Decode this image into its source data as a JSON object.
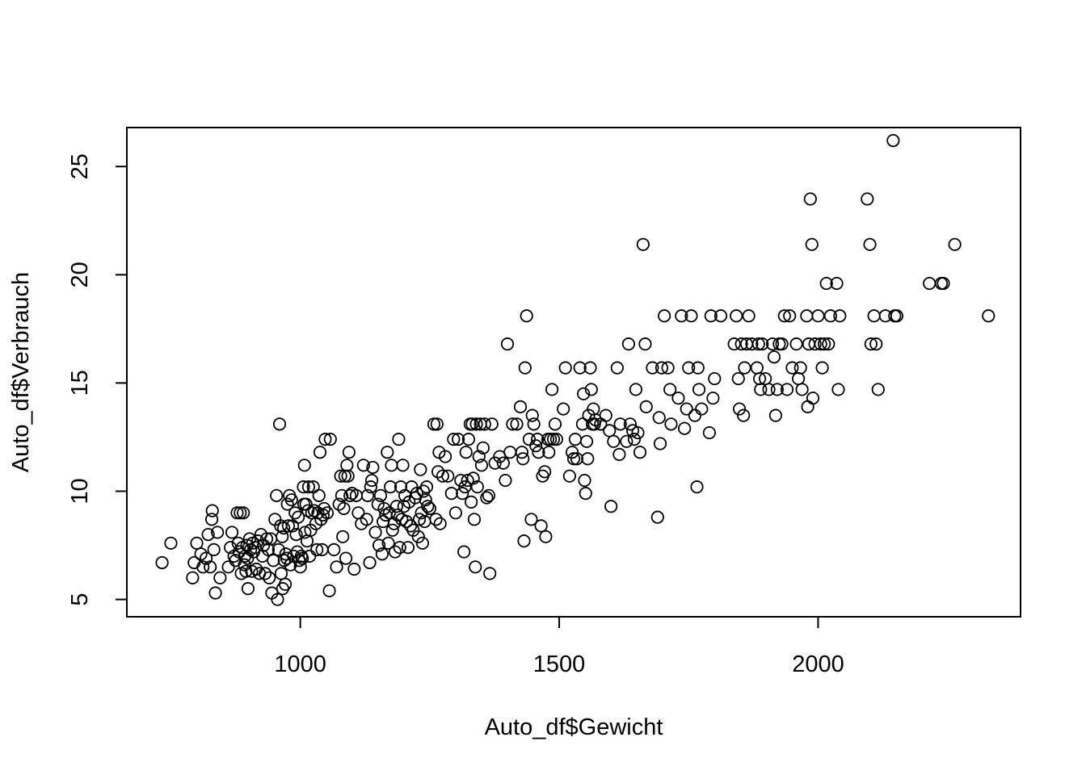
{
  "chart_data": {
    "type": "scatter",
    "xlabel": "Auto_df$Gewicht",
    "ylabel": "Auto_df$Verbrauch",
    "xlim": [
      665,
      2391
    ],
    "ylim": [
      4.2,
      26.8
    ],
    "x_ticks": [
      1000,
      1500,
      2000
    ],
    "y_ticks": [
      5,
      10,
      15,
      20,
      25
    ],
    "x_tick_labels": [
      "1000",
      "1500",
      "2000"
    ],
    "y_tick_labels": [
      "5",
      "10",
      "15",
      "20",
      "25"
    ],
    "grid": false,
    "legend": "none",
    "marker": "open-circle",
    "points": [
      [
        733,
        6.7
      ],
      [
        750,
        7.6
      ],
      [
        792,
        6.0
      ],
      [
        795,
        6.7
      ],
      [
        800,
        7.6
      ],
      [
        808,
        7.1
      ],
      [
        812,
        6.5
      ],
      [
        818,
        6.9
      ],
      [
        822,
        8.0
      ],
      [
        826,
        6.5
      ],
      [
        829,
        8.7
      ],
      [
        830,
        9.1
      ],
      [
        833,
        7.3
      ],
      [
        836,
        5.3
      ],
      [
        840,
        8.1
      ],
      [
        845,
        6.0
      ],
      [
        861,
        6.5
      ],
      [
        865,
        7.4
      ],
      [
        868,
        8.1
      ],
      [
        872,
        7.0
      ],
      [
        875,
        6.8
      ],
      [
        878,
        9.0
      ],
      [
        880,
        7.6
      ],
      [
        882,
        7.2
      ],
      [
        884,
        9.0
      ],
      [
        886,
        6.2
      ],
      [
        888,
        7.4
      ],
      [
        890,
        9.0
      ],
      [
        892,
        6.6
      ],
      [
        893,
        7.0
      ],
      [
        895,
        6.3
      ],
      [
        897,
        7.5
      ],
      [
        898,
        6.9
      ],
      [
        899,
        5.5
      ],
      [
        902,
        7.8
      ],
      [
        904,
        7.3
      ],
      [
        906,
        6.3
      ],
      [
        908,
        7.6
      ],
      [
        910,
        7.2
      ],
      [
        913,
        7.4
      ],
      [
        915,
        6.4
      ],
      [
        918,
        7.7
      ],
      [
        921,
        6.2
      ],
      [
        924,
        8.0
      ],
      [
        927,
        7.0
      ],
      [
        929,
        7.5
      ],
      [
        932,
        6.2
      ],
      [
        935,
        7.8
      ],
      [
        938,
        7.3
      ],
      [
        940,
        6.0
      ],
      [
        943,
        7.8
      ],
      [
        945,
        5.3
      ],
      [
        948,
        6.8
      ],
      [
        951,
        8.7
      ],
      [
        954,
        9.8
      ],
      [
        956,
        5.0
      ],
      [
        958,
        7.3
      ],
      [
        960,
        13.1
      ],
      [
        962,
        8.4
      ],
      [
        963,
        6.2
      ],
      [
        965,
        7.9
      ],
      [
        966,
        5.5
      ],
      [
        968,
        8.3
      ],
      [
        969,
        6.8
      ],
      [
        971,
        5.7
      ],
      [
        972,
        7.1
      ],
      [
        974,
        6.9
      ],
      [
        975,
        9.4
      ],
      [
        977,
        8.4
      ],
      [
        979,
        9.8
      ],
      [
        981,
        6.6
      ],
      [
        983,
        9.6
      ],
      [
        985,
        8.4
      ],
      [
        987,
        7.0
      ],
      [
        990,
        9.0
      ],
      [
        992,
        8.0
      ],
      [
        994,
        7.2
      ],
      [
        996,
        8.8
      ],
      [
        998,
        6.8
      ],
      [
        1000,
        6.5
      ],
      [
        1002,
        7.0
      ],
      [
        1004,
        6.9
      ],
      [
        1006,
        10.2
      ],
      [
        1007,
        9.4
      ],
      [
        1008,
        11.2
      ],
      [
        1009,
        8.1
      ],
      [
        1011,
        9.4
      ],
      [
        1013,
        7.7
      ],
      [
        1015,
        9.1
      ],
      [
        1016,
        10.2
      ],
      [
        1018,
        7.0
      ],
      [
        1020,
        8.2
      ],
      [
        1022,
        9.0
      ],
      [
        1025,
        10.2
      ],
      [
        1027,
        9.1
      ],
      [
        1030,
        8.5
      ],
      [
        1032,
        7.3
      ],
      [
        1034,
        9.0
      ],
      [
        1036,
        9.8
      ],
      [
        1038,
        11.8
      ],
      [
        1040,
        8.7
      ],
      [
        1042,
        7.3
      ],
      [
        1044,
        8.9
      ],
      [
        1046,
        9.2
      ],
      [
        1048,
        12.4
      ],
      [
        1052,
        9.0
      ],
      [
        1056,
        5.4
      ],
      [
        1058,
        12.4
      ],
      [
        1065,
        7.3
      ],
      [
        1070,
        6.5
      ],
      [
        1075,
        9.4
      ],
      [
        1078,
        10.7
      ],
      [
        1080,
        9.8
      ],
      [
        1082,
        7.9
      ],
      [
        1084,
        9.2
      ],
      [
        1086,
        10.7
      ],
      [
        1088,
        6.9
      ],
      [
        1090,
        11.2
      ],
      [
        1092,
        10.7
      ],
      [
        1094,
        11.8
      ],
      [
        1096,
        9.8
      ],
      [
        1100,
        9.9
      ],
      [
        1104,
        6.4
      ],
      [
        1108,
        9.8
      ],
      [
        1112,
        9.0
      ],
      [
        1118,
        8.5
      ],
      [
        1122,
        11.2
      ],
      [
        1128,
        8.7
      ],
      [
        1130,
        9.8
      ],
      [
        1134,
        6.7
      ],
      [
        1136,
        10.2
      ],
      [
        1138,
        10.5
      ],
      [
        1140,
        11.1
      ],
      [
        1145,
        8.1
      ],
      [
        1150,
        9.4
      ],
      [
        1152,
        7.5
      ],
      [
        1155,
        9.8
      ],
      [
        1158,
        7.1
      ],
      [
        1160,
        8.6
      ],
      [
        1162,
        9.2
      ],
      [
        1165,
        8.9
      ],
      [
        1168,
        11.8
      ],
      [
        1170,
        7.6
      ],
      [
        1172,
        9.0
      ],
      [
        1174,
        10.2
      ],
      [
        1176,
        11.2
      ],
      [
        1178,
        8.2
      ],
      [
        1181,
        8.5
      ],
      [
        1183,
        7.2
      ],
      [
        1186,
        9.3
      ],
      [
        1188,
        8.9
      ],
      [
        1190,
        12.4
      ],
      [
        1192,
        7.4
      ],
      [
        1194,
        10.2
      ],
      [
        1196,
        8.7
      ],
      [
        1198,
        11.2
      ],
      [
        1200,
        9.3
      ],
      [
        1202,
        9.8
      ],
      [
        1205,
        8.6
      ],
      [
        1208,
        7.4
      ],
      [
        1210,
        9.5
      ],
      [
        1213,
        8.4
      ],
      [
        1215,
        10.2
      ],
      [
        1218,
        8.2
      ],
      [
        1222,
        9.7
      ],
      [
        1225,
        9.9
      ],
      [
        1228,
        7.9
      ],
      [
        1230,
        8.7
      ],
      [
        1232,
        11.0
      ],
      [
        1234,
        9.0
      ],
      [
        1236,
        7.6
      ],
      [
        1238,
        10.0
      ],
      [
        1240,
        8.6
      ],
      [
        1242,
        9.6
      ],
      [
        1244,
        10.2
      ],
      [
        1246,
        9.3
      ],
      [
        1250,
        9.2
      ],
      [
        1258,
        13.1
      ],
      [
        1262,
        8.7
      ],
      [
        1264,
        13.1
      ],
      [
        1266,
        10.9
      ],
      [
        1268,
        11.8
      ],
      [
        1270,
        8.5
      ],
      [
        1275,
        10.7
      ],
      [
        1280,
        11.6
      ],
      [
        1285,
        10.7
      ],
      [
        1292,
        9.9
      ],
      [
        1296,
        12.4
      ],
      [
        1300,
        9.0
      ],
      [
        1305,
        12.4
      ],
      [
        1310,
        10.5
      ],
      [
        1313,
        9.9
      ],
      [
        1316,
        7.2
      ],
      [
        1318,
        10.2
      ],
      [
        1320,
        11.8
      ],
      [
        1323,
        10.5
      ],
      [
        1325,
        12.4
      ],
      [
        1328,
        13.1
      ],
      [
        1330,
        9.5
      ],
      [
        1332,
        13.1
      ],
      [
        1334,
        10.6
      ],
      [
        1336,
        8.7
      ],
      [
        1338,
        6.5
      ],
      [
        1340,
        13.1
      ],
      [
        1342,
        10.2
      ],
      [
        1345,
        11.6
      ],
      [
        1348,
        13.1
      ],
      [
        1350,
        11.2
      ],
      [
        1353,
        12.0
      ],
      [
        1356,
        13.1
      ],
      [
        1360,
        9.7
      ],
      [
        1364,
        9.8
      ],
      [
        1366,
        6.2
      ],
      [
        1370,
        13.1
      ],
      [
        1376,
        11.3
      ],
      [
        1385,
        11.6
      ],
      [
        1392,
        11.3
      ],
      [
        1396,
        10.5
      ],
      [
        1400,
        16.8
      ],
      [
        1405,
        11.8
      ],
      [
        1410,
        13.1
      ],
      [
        1418,
        13.1
      ],
      [
        1425,
        13.9
      ],
      [
        1428,
        11.8
      ],
      [
        1430,
        11.5
      ],
      [
        1432,
        7.7
      ],
      [
        1434,
        15.7
      ],
      [
        1437,
        18.1
      ],
      [
        1442,
        12.4
      ],
      [
        1446,
        8.7
      ],
      [
        1448,
        13.5
      ],
      [
        1451,
        13.1
      ],
      [
        1455,
        12.1
      ],
      [
        1458,
        12.4
      ],
      [
        1460,
        11.8
      ],
      [
        1465,
        8.4
      ],
      [
        1468,
        10.7
      ],
      [
        1472,
        10.9
      ],
      [
        1474,
        7.9
      ],
      [
        1478,
        12.4
      ],
      [
        1480,
        11.8
      ],
      [
        1483,
        12.4
      ],
      [
        1486,
        14.7
      ],
      [
        1489,
        12.4
      ],
      [
        1492,
        13.1
      ],
      [
        1495,
        12.4
      ],
      [
        1508,
        13.8
      ],
      [
        1512,
        15.7
      ],
      [
        1520,
        10.7
      ],
      [
        1525,
        11.8
      ],
      [
        1528,
        11.5
      ],
      [
        1531,
        12.4
      ],
      [
        1534,
        11.5
      ],
      [
        1540,
        15.7
      ],
      [
        1545,
        13.1
      ],
      [
        1547,
        14.5
      ],
      [
        1549,
        10.5
      ],
      [
        1551,
        9.9
      ],
      [
        1553,
        12.3
      ],
      [
        1555,
        11.5
      ],
      [
        1557,
        13.5
      ],
      [
        1560,
        15.7
      ],
      [
        1562,
        14.7
      ],
      [
        1564,
        13.1
      ],
      [
        1566,
        13.8
      ],
      [
        1568,
        13.1
      ],
      [
        1570,
        13.3
      ],
      [
        1580,
        13.1
      ],
      [
        1590,
        13.5
      ],
      [
        1597,
        12.8
      ],
      [
        1600,
        9.3
      ],
      [
        1605,
        12.3
      ],
      [
        1612,
        15.7
      ],
      [
        1616,
        11.7
      ],
      [
        1618,
        13.1
      ],
      [
        1630,
        12.3
      ],
      [
        1634,
        16.8
      ],
      [
        1637,
        13.1
      ],
      [
        1642,
        12.8
      ],
      [
        1645,
        12.4
      ],
      [
        1648,
        14.7
      ],
      [
        1652,
        12.7
      ],
      [
        1656,
        11.8
      ],
      [
        1662,
        21.4
      ],
      [
        1666,
        16.8
      ],
      [
        1668,
        13.9
      ],
      [
        1680,
        15.7
      ],
      [
        1690,
        8.8
      ],
      [
        1693,
        13.4
      ],
      [
        1695,
        12.2
      ],
      [
        1698,
        15.7
      ],
      [
        1703,
        18.1
      ],
      [
        1710,
        15.7
      ],
      [
        1714,
        14.7
      ],
      [
        1716,
        13.1
      ],
      [
        1730,
        14.3
      ],
      [
        1736,
        18.1
      ],
      [
        1742,
        12.9
      ],
      [
        1746,
        13.8
      ],
      [
        1750,
        15.7
      ],
      [
        1755,
        18.1
      ],
      [
        1762,
        13.5
      ],
      [
        1766,
        10.2
      ],
      [
        1768,
        15.7
      ],
      [
        1770,
        14.7
      ],
      [
        1775,
        13.8
      ],
      [
        1790,
        12.7
      ],
      [
        1793,
        18.1
      ],
      [
        1797,
        14.3
      ],
      [
        1800,
        15.2
      ],
      [
        1812,
        18.1
      ],
      [
        1838,
        16.8
      ],
      [
        1842,
        18.1
      ],
      [
        1846,
        15.2
      ],
      [
        1848,
        13.8
      ],
      [
        1852,
        16.8
      ],
      [
        1856,
        13.5
      ],
      [
        1858,
        15.7
      ],
      [
        1862,
        16.8
      ],
      [
        1866,
        18.1
      ],
      [
        1872,
        16.8
      ],
      [
        1882,
        15.7
      ],
      [
        1885,
        16.8
      ],
      [
        1887,
        15.2
      ],
      [
        1889,
        14.7
      ],
      [
        1892,
        16.8
      ],
      [
        1898,
        15.2
      ],
      [
        1905,
        14.7
      ],
      [
        1912,
        16.8
      ],
      [
        1915,
        16.2
      ],
      [
        1918,
        13.5
      ],
      [
        1921,
        14.7
      ],
      [
        1925,
        16.8
      ],
      [
        1930,
        16.8
      ],
      [
        1935,
        18.1
      ],
      [
        1940,
        14.7
      ],
      [
        1945,
        18.1
      ],
      [
        1950,
        15.7
      ],
      [
        1958,
        16.8
      ],
      [
        1962,
        15.2
      ],
      [
        1966,
        15.7
      ],
      [
        1969,
        14.7
      ],
      [
        1978,
        18.1
      ],
      [
        1980,
        13.9
      ],
      [
        1982,
        16.8
      ],
      [
        1985,
        23.5
      ],
      [
        1988,
        21.4
      ],
      [
        1990,
        14.3
      ],
      [
        1994,
        16.8
      ],
      [
        2000,
        18.1
      ],
      [
        2005,
        16.8
      ],
      [
        2008,
        15.7
      ],
      [
        2012,
        16.8
      ],
      [
        2016,
        19.6
      ],
      [
        2020,
        16.8
      ],
      [
        2024,
        18.1
      ],
      [
        2036,
        19.6
      ],
      [
        2039,
        14.7
      ],
      [
        2042,
        18.1
      ],
      [
        2095,
        23.5
      ],
      [
        2100,
        21.4
      ],
      [
        2102,
        16.8
      ],
      [
        2108,
        18.1
      ],
      [
        2112,
        16.8
      ],
      [
        2116,
        14.7
      ],
      [
        2130,
        18.1
      ],
      [
        2145,
        26.2
      ],
      [
        2148,
        18.1
      ],
      [
        2152,
        18.1
      ],
      [
        2215,
        19.6
      ],
      [
        2238,
        19.6
      ],
      [
        2242,
        19.6
      ],
      [
        2264,
        21.4
      ],
      [
        2329,
        18.1
      ]
    ]
  }
}
